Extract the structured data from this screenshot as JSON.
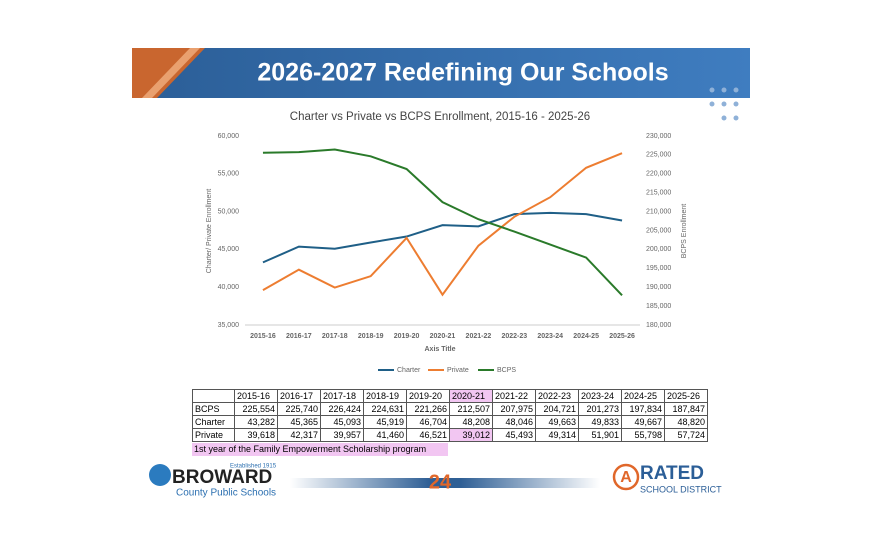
{
  "slide": {
    "title": "2026-2027 Redefining Our Schools"
  },
  "chart_data": {
    "type": "line",
    "title": "Charter vs Private vs BCPS Enrollment, 2015-16 - 2025-26",
    "x_label": "Axis Title",
    "y_label": "Charter/ Private Enrollment",
    "y2_label": "BCPS Enrollment",
    "categories": [
      "2015-16",
      "2016-17",
      "2017-18",
      "2018-19",
      "2019-20",
      "2020-21",
      "2021-22",
      "2022-23",
      "2023-24",
      "2024-25",
      "2025-26"
    ],
    "series": [
      {
        "name": "Charter",
        "color": "#1f5f87",
        "values": [
          43282,
          45365,
          45093,
          45919,
          46704,
          48208,
          48046,
          49663,
          49833,
          49667,
          48820
        ]
      },
      {
        "name": "Private",
        "color": "#ed7d31",
        "values": [
          39618,
          42317,
          39957,
          41460,
          46521,
          39012,
          45493,
          49314,
          51901,
          55798,
          57724
        ]
      },
      {
        "name": "BCPS",
        "color": "#2a7a2a",
        "axis": "y2",
        "values": [
          225554,
          225740,
          226424,
          224631,
          221266,
          212507,
          207975,
          204721,
          201273,
          197834,
          187847
        ]
      }
    ],
    "ylim": [
      35000,
      60000
    ],
    "yticks": [
      {
        "value": 35000,
        "label": "35,000"
      },
      {
        "value": 40000,
        "label": "40,000"
      },
      {
        "value": 45000,
        "label": "45,000"
      },
      {
        "value": 50000,
        "label": "50,000"
      },
      {
        "value": 55000,
        "label": "55,000"
      },
      {
        "value": 60000,
        "label": "60,000"
      }
    ],
    "y2lim": [
      180000,
      230000
    ],
    "y2ticks": [
      {
        "value": 180000,
        "label": "180,000"
      },
      {
        "value": 185000,
        "label": "185,000"
      },
      {
        "value": 190000,
        "label": "190,000"
      },
      {
        "value": 195000,
        "label": "195,000"
      },
      {
        "value": 200000,
        "label": "200,000"
      },
      {
        "value": 205000,
        "label": "205,000"
      },
      {
        "value": 210000,
        "label": "210,000"
      },
      {
        "value": 215000,
        "label": "215,000"
      },
      {
        "value": 220000,
        "label": "220,000"
      },
      {
        "value": 225000,
        "label": "225,000"
      },
      {
        "value": 230000,
        "label": "230,000"
      }
    ],
    "grid": false,
    "legend": "bottom"
  },
  "table": {
    "header": [
      "2015-16",
      "2016-17",
      "2017-18",
      "2018-19",
      "2019-20",
      "2020-21",
      "2021-22",
      "2022-23",
      "2023-24",
      "2024-25",
      "2025-26"
    ],
    "rows": [
      {
        "label": "BCPS",
        "cells": [
          "225,554",
          "225,740",
          "226,424",
          "224,631",
          "221,266",
          "212,507",
          "207,975",
          "204,721",
          "201,273",
          "197,834",
          "187,847"
        ]
      },
      {
        "label": "Charter",
        "cells": [
          "43,282",
          "45,365",
          "45,093",
          "45,919",
          "46,704",
          "48,208",
          "48,046",
          "49,663",
          "49,833",
          "49,667",
          "48,820"
        ]
      },
      {
        "label": "Private",
        "cells": [
          "39,618",
          "42,317",
          "39,957",
          "41,460",
          "46,521",
          "39,012",
          "45,493",
          "49,314",
          "51,901",
          "55,798",
          "57,724"
        ]
      }
    ],
    "note": "1st year of the Family Empowerment Scholarship program"
  },
  "footer": {
    "established": "Established 1915",
    "district": "BROWARD",
    "district_sub": "County Public Schools",
    "page": "24",
    "badge_letter": "A",
    "badge": "RATED",
    "badge_sub": "SCHOOL DISTRICT"
  }
}
